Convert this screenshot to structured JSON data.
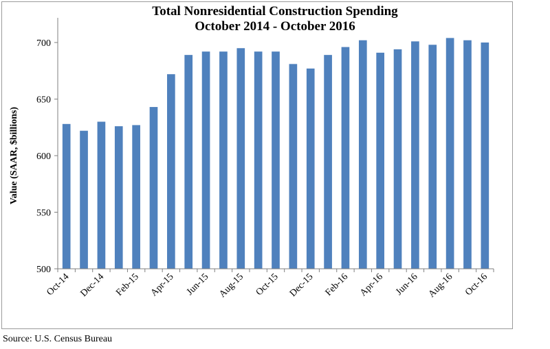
{
  "chart_data": {
    "type": "bar",
    "title": "Total Nonresidential Construction Spending",
    "subtitle": "October 2014 - October 2016",
    "ylabel": "Value (SAAR, $billions)",
    "xlabel": "",
    "ylim": [
      500,
      700
    ],
    "yticks": [
      500,
      550,
      600,
      650,
      700
    ],
    "categories": [
      "Oct-14",
      "Nov-14",
      "Dec-14",
      "Jan-15",
      "Feb-15",
      "Mar-15",
      "Apr-15",
      "May-15",
      "Jun-15",
      "Jul-15",
      "Aug-15",
      "Sep-15",
      "Oct-15",
      "Nov-15",
      "Dec-15",
      "Jan-16",
      "Feb-16",
      "Mar-16",
      "Apr-16",
      "May-16",
      "Jun-16",
      "Jul-16",
      "Aug-16",
      "Sep-16",
      "Oct-16"
    ],
    "tick_labels_shown": [
      "Oct-14",
      "Dec-14",
      "Feb-15",
      "Apr-15",
      "Jun-15",
      "Aug-15",
      "Oct-15",
      "Dec-15",
      "Feb-16",
      "Apr-16",
      "Jun-16",
      "Aug-16",
      "Oct-16"
    ],
    "values": [
      628,
      622,
      630,
      626,
      627,
      643,
      672,
      689,
      692,
      692,
      695,
      692,
      692,
      681,
      677,
      689,
      696,
      702,
      691,
      694,
      701,
      698,
      704,
      702,
      700
    ],
    "bar_color": "#4f81bd",
    "grid": false,
    "legend": "none"
  },
  "source_text": "Source:  U.S. Census Bureau"
}
